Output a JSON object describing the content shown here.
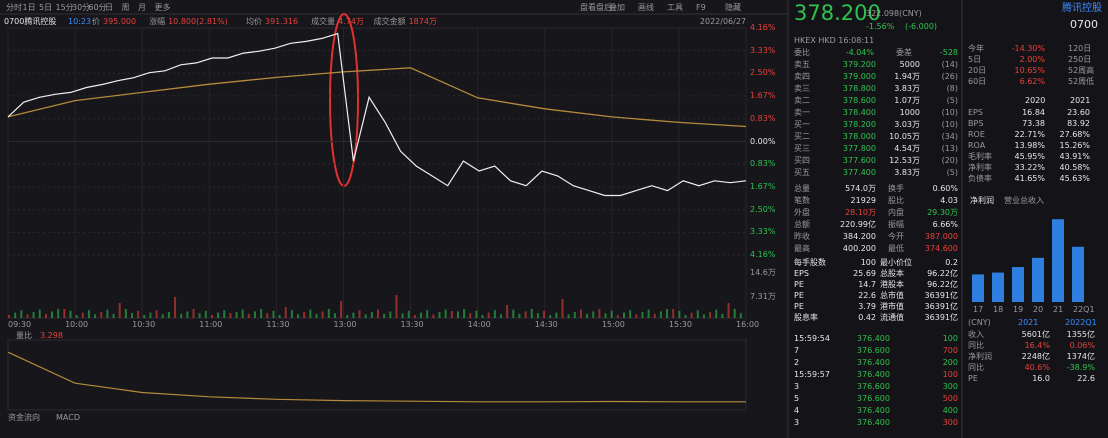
{
  "toolbar": {
    "tabs": [
      "分时",
      "1日",
      "5日",
      "15分",
      "30分",
      "60分",
      "日",
      "周",
      "月",
      "更多"
    ],
    "right": [
      "盘看盘后",
      "叠加",
      "画线",
      "工具",
      "F9",
      "隐藏"
    ]
  },
  "info": {
    "name": "0700腾讯控股",
    "time": "10:23",
    "fields": [
      [
        "价",
        "395.000"
      ],
      [
        "涨幅",
        "10.800(2.81%)"
      ],
      [
        "均价",
        "391.316"
      ],
      [
        "成交量",
        "4.74万"
      ],
      [
        "成交金额",
        "1874万"
      ]
    ],
    "date": "2022/06/27"
  },
  "chart": {
    "type": "line",
    "ylim": [
      -4.16,
      4.16
    ],
    "yticks": [
      {
        "value": 4.16,
        "label": "4.16%"
      },
      {
        "value": 3.33,
        "label": "3.33%"
      },
      {
        "value": 2.5,
        "label": "2.50%"
      },
      {
        "value": 1.67,
        "label": "1.67%"
      },
      {
        "value": 0.83,
        "label": "0.83%"
      },
      {
        "value": 0,
        "label": "0.00%"
      },
      {
        "value": -0.83,
        "label": "0.83%"
      },
      {
        "value": -1.67,
        "label": "1.67%"
      },
      {
        "value": -2.5,
        "label": "2.50%"
      },
      {
        "value": -3.33,
        "label": "3.33%"
      },
      {
        "value": -4.16,
        "label": "4.16%"
      }
    ],
    "times": [
      "09:30",
      "10:00",
      "10:30",
      "11:00",
      "11:30",
      "13:00",
      "13:30",
      "14:00",
      "14:30",
      "15:00",
      "15:30",
      "16:00"
    ],
    "price": [
      0.9,
      1.44,
      1.62,
      1.73,
      1.8,
      1.98,
      2.09,
      2.23,
      2.34,
      2.52,
      2.59,
      2.81,
      2.88,
      3.06,
      3.06,
      3.24,
      3.31,
      3.42,
      3.6,
      3.67,
      3.78,
      3.96,
      -0.72,
      1.62,
      0.72,
      -0.36,
      -0.9,
      -1.26,
      -1.62,
      -0.72,
      -1.08,
      -0.9,
      -1.44,
      -1.62,
      -1.08,
      -1.26,
      -1.62,
      -1.8,
      -1.98,
      -1.98,
      -1.8,
      -1.62,
      -1.8,
      -1.44,
      -1.62,
      -1.44,
      -1.51,
      -1.44
    ],
    "average": [
      0.9,
      1.5,
      1.8,
      2.1,
      2.35,
      2.55,
      2.7,
      1.6,
      1.2,
      0.9,
      0.7,
      0.55
    ],
    "volume_labels": [
      "14.6万",
      "7.31万"
    ]
  },
  "lower": {
    "label": "量比",
    "value": "3.298",
    "ratio": [
      9,
      4,
      2.5,
      1.8,
      1.4,
      1.2,
      1.1,
      1.0,
      1.0,
      1.05,
      1.0,
      1.0
    ],
    "ylim": [
      0,
      10
    ],
    "tabs": [
      "资金流向",
      "MACD"
    ]
  },
  "quote": {
    "price": "378.200",
    "sub": "322.098(CNY)",
    "change": "-1.56%",
    "change_abs": "(-6.000)",
    "market": "HKEX HKD 16:08:11",
    "ratio": [
      "委比",
      "-4.04%",
      "委差",
      "-528"
    ],
    "book": [
      [
        "卖五",
        "379.200",
        "5000",
        "(14)"
      ],
      [
        "卖四",
        "379.000",
        "1.94万",
        "(26)"
      ],
      [
        "卖三",
        "378.800",
        "3.83万",
        "(8)"
      ],
      [
        "卖二",
        "378.600",
        "1.07万",
        "(5)"
      ],
      [
        "卖一",
        "378.400",
        "1000",
        "(10)"
      ],
      [
        "买一",
        "378.200",
        "3.03万",
        "(10)"
      ],
      [
        "买二",
        "378.000",
        "10.05万",
        "(34)"
      ],
      [
        "买三",
        "377.800",
        "4.54万",
        "(13)"
      ],
      [
        "买四",
        "377.600",
        "12.53万",
        "(20)"
      ],
      [
        "买五",
        "377.400",
        "3.83万",
        "(5)"
      ]
    ],
    "stats": [
      [
        "总量",
        "574.0万",
        "换手",
        "0.60%"
      ],
      [
        "笔数",
        "21929",
        "股比",
        "4.03"
      ],
      [
        "外盘",
        "28.10万",
        "内盘",
        "29.30万"
      ],
      [
        "总额",
        "220.99亿",
        "振幅",
        "6.66%"
      ],
      [
        "昨收",
        "384.200",
        "今开",
        "387.000"
      ],
      [
        "最高",
        "400.200",
        "最低",
        "374.600"
      ]
    ],
    "info": [
      [
        "每手股数",
        "100",
        "最小价位",
        "0.2"
      ],
      [
        "EPS",
        "25.69",
        "总股本",
        "96.22亿"
      ],
      [
        "PE",
        "14.7",
        "港股本",
        "96.22亿"
      ],
      [
        "PE",
        "22.6",
        "总市值",
        "36391亿"
      ],
      [
        "PE",
        "3.79",
        "港市值",
        "36391亿"
      ],
      [
        "股息率",
        "0.42",
        "流通值",
        "36391亿"
      ]
    ],
    "ticks": [
      [
        "15:59:54",
        "376.400",
        "100"
      ],
      [
        "7",
        "376.600",
        "700"
      ],
      [
        "2",
        "376.400",
        "200"
      ],
      [
        "15:59:57",
        "376.400",
        "100"
      ],
      [
        "3",
        "376.600",
        "300"
      ],
      [
        "5",
        "376.600",
        "500"
      ],
      [
        "4",
        "376.400",
        "400"
      ],
      [
        "3",
        "376.400",
        "300"
      ]
    ]
  },
  "side": {
    "title": "腾讯控股",
    "code": "0700",
    "perf": [
      [
        "今年",
        "-14.30%",
        "120日"
      ],
      [
        "5日",
        "2.00%",
        "250日"
      ],
      [
        "20日",
        "10.65%",
        "52周高"
      ],
      [
        "60日",
        "6.62%",
        "52周低"
      ]
    ],
    "years": [
      "2020",
      "2021"
    ],
    "fin": [
      [
        "EPS",
        "16.84",
        "23.60"
      ],
      [
        "BPS",
        "73.38",
        "83.92"
      ],
      [
        "ROE",
        "22.71%",
        "27.68%"
      ],
      [
        "ROA",
        "13.98%",
        "15.26%"
      ],
      [
        "毛利率",
        "45.95%",
        "43.91%"
      ],
      [
        "净利率",
        "33.22%",
        "40.58%"
      ],
      [
        "负债率",
        "41.65%",
        "45.63%"
      ]
    ],
    "tabs": [
      "净利润",
      "营业总收入"
    ],
    "bars": {
      "categories": [
        "17",
        "18",
        "19",
        "20",
        "21",
        "22Q1"
      ],
      "values": [
        30,
        32,
        38,
        48,
        90,
        60
      ],
      "ylim": [
        0,
        100
      ]
    },
    "table": {
      "header": [
        "(CNY)",
        "2021",
        "2022Q1"
      ],
      "rows": [
        [
          "收入",
          "5601亿",
          "1355亿"
        ],
        [
          "同比",
          "16.4%",
          "0.06%"
        ],
        [
          "净利润",
          "2248亿",
          "1374亿"
        ],
        [
          "同比",
          "40.6%",
          "-38.9%"
        ],
        [
          "PE",
          "16.0",
          "22.6"
        ]
      ]
    }
  }
}
